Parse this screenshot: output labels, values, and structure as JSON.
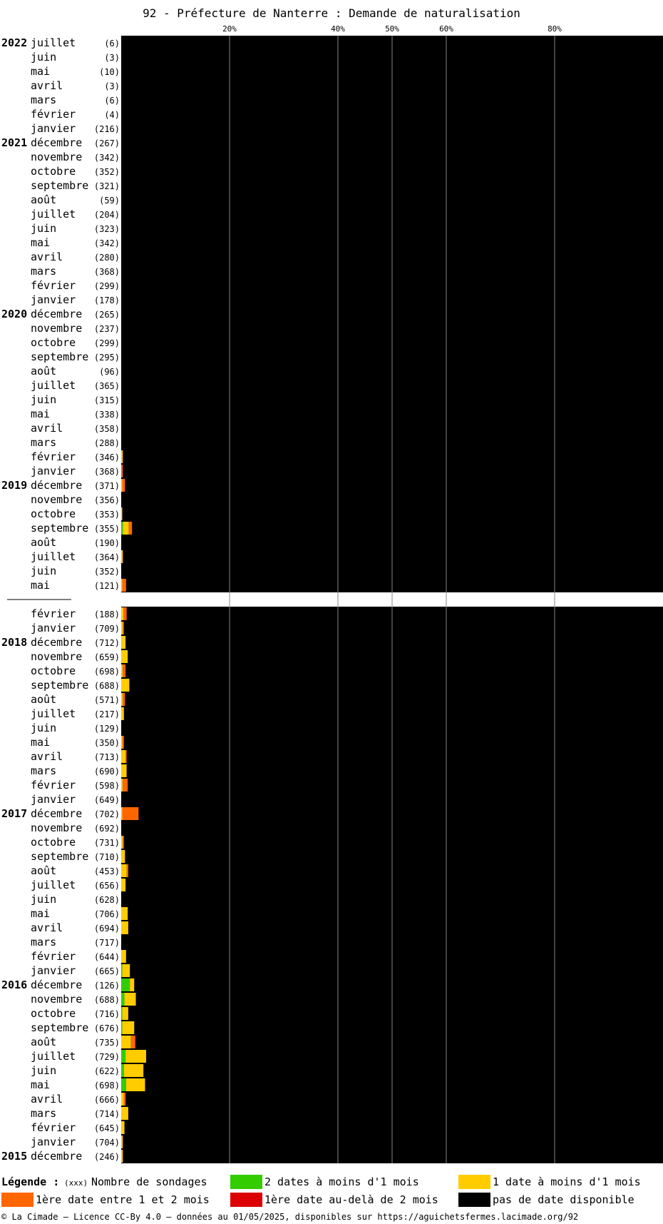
{
  "chart_data": {
    "type": "bar",
    "stacked": true,
    "orientation": "horizontal",
    "title": "92 - Préfecture de Nanterre : Demande de naturalisation",
    "x_ticks": [
      "20%",
      "40%",
      "50%",
      "60%",
      "80%"
    ],
    "x_tick_values": [
      20,
      40,
      50,
      60,
      80
    ],
    "xlim": [
      0,
      100
    ],
    "grid": true,
    "background_color": "#000000",
    "series": [
      {
        "key": "green",
        "name": "2 dates à moins d'1 mois",
        "color": "#33cc00"
      },
      {
        "key": "yellow",
        "name": "1 date à moins d'1 mois",
        "color": "#ffcc00"
      },
      {
        "key": "orange",
        "name": "1ère date entre 1 et 2 mois",
        "color": "#ff6600"
      },
      {
        "key": "red",
        "name": "1ère date au-delà de 2 mois",
        "color": "#dd0000"
      },
      {
        "key": "black",
        "name": "pas de date disponible",
        "color": "#000000"
      }
    ],
    "upper_rows": [
      {
        "year": "2022",
        "month": "juillet",
        "count": "(6)",
        "green": 0,
        "yellow": 0,
        "orange": 0
      },
      {
        "year": "",
        "month": "juin",
        "count": "(3)",
        "green": 0,
        "yellow": 0,
        "orange": 0
      },
      {
        "year": "",
        "month": "mai",
        "count": "(10)",
        "green": 0,
        "yellow": 0,
        "orange": 0
      },
      {
        "year": "",
        "month": "avril",
        "count": "(3)",
        "green": 0,
        "yellow": 0,
        "orange": 0
      },
      {
        "year": "",
        "month": "mars",
        "count": "(6)",
        "green": 0,
        "yellow": 0,
        "orange": 0
      },
      {
        "year": "",
        "month": "février",
        "count": "(4)",
        "green": 0,
        "yellow": 0,
        "orange": 0
      },
      {
        "year": "",
        "month": "janvier",
        "count": "(216)",
        "green": 0,
        "yellow": 0,
        "orange": 0
      },
      {
        "year": "2021",
        "month": "décembre",
        "count": "(267)",
        "green": 0,
        "yellow": 0,
        "orange": 0
      },
      {
        "year": "",
        "month": "novembre",
        "count": "(342)",
        "green": 0,
        "yellow": 0,
        "orange": 0
      },
      {
        "year": "",
        "month": "octobre",
        "count": "(352)",
        "green": 0,
        "yellow": 0,
        "orange": 0
      },
      {
        "year": "",
        "month": "septembre",
        "count": "(321)",
        "green": 0,
        "yellow": 0,
        "orange": 0
      },
      {
        "year": "",
        "month": "août",
        "count": "(59)",
        "green": 0,
        "yellow": 0,
        "orange": 0
      },
      {
        "year": "",
        "month": "juillet",
        "count": "(204)",
        "green": 0,
        "yellow": 0,
        "orange": 0
      },
      {
        "year": "",
        "month": "juin",
        "count": "(323)",
        "green": 0,
        "yellow": 0,
        "orange": 0
      },
      {
        "year": "",
        "month": "mai",
        "count": "(342)",
        "green": 0,
        "yellow": 0,
        "orange": 0
      },
      {
        "year": "",
        "month": "avril",
        "count": "(280)",
        "green": 0,
        "yellow": 0,
        "orange": 0
      },
      {
        "year": "",
        "month": "mars",
        "count": "(368)",
        "green": 0,
        "yellow": 0,
        "orange": 0
      },
      {
        "year": "",
        "month": "février",
        "count": "(299)",
        "green": 0,
        "yellow": 0,
        "orange": 0
      },
      {
        "year": "",
        "month": "janvier",
        "count": "(178)",
        "green": 0,
        "yellow": 0,
        "orange": 0
      },
      {
        "year": "2020",
        "month": "décembre",
        "count": "(265)",
        "green": 0,
        "yellow": 0,
        "orange": 0
      },
      {
        "year": "",
        "month": "novembre",
        "count": "(237)",
        "green": 0,
        "yellow": 0,
        "orange": 0
      },
      {
        "year": "",
        "month": "octobre",
        "count": "(299)",
        "green": 0,
        "yellow": 0,
        "orange": 0
      },
      {
        "year": "",
        "month": "septembre",
        "count": "(295)",
        "green": 0,
        "yellow": 0,
        "orange": 0
      },
      {
        "year": "",
        "month": "août",
        "count": "(96)",
        "green": 0,
        "yellow": 0,
        "orange": 0
      },
      {
        "year": "",
        "month": "juillet",
        "count": "(365)",
        "green": 0,
        "yellow": 0,
        "orange": 0
      },
      {
        "year": "",
        "month": "juin",
        "count": "(315)",
        "green": 0,
        "yellow": 0,
        "orange": 0
      },
      {
        "year": "",
        "month": "mai",
        "count": "(338)",
        "green": 0,
        "yellow": 0,
        "orange": 0
      },
      {
        "year": "",
        "month": "avril",
        "count": "(358)",
        "green": 0,
        "yellow": 0,
        "orange": 0
      },
      {
        "year": "",
        "month": "mars",
        "count": "(288)",
        "green": 0,
        "yellow": 0,
        "orange": 0
      },
      {
        "year": "",
        "month": "février",
        "count": "(346)",
        "green": 0,
        "yellow": 0.3,
        "orange": 0
      },
      {
        "year": "",
        "month": "janvier",
        "count": "(368)",
        "green": 0,
        "yellow": 0,
        "orange": 0.3
      },
      {
        "year": "2019",
        "month": "décembre",
        "count": "(371)",
        "green": 0,
        "yellow": 0.2,
        "orange": 0.5
      },
      {
        "year": "",
        "month": "novembre",
        "count": "(356)",
        "green": 0,
        "yellow": 0,
        "orange": 0
      },
      {
        "year": "",
        "month": "octobre",
        "count": "(353)",
        "green": 0,
        "yellow": 0.2,
        "orange": 0
      },
      {
        "year": "",
        "month": "septembre",
        "count": "(355)",
        "green": 0.3,
        "yellow": 1.1,
        "orange": 0.6
      },
      {
        "year": "",
        "month": "août",
        "count": "(190)",
        "green": 0,
        "yellow": 0,
        "orange": 0
      },
      {
        "year": "",
        "month": "juillet",
        "count": "(364)",
        "green": 0,
        "yellow": 0.3,
        "orange": 0
      },
      {
        "year": "",
        "month": "juin",
        "count": "(352)",
        "green": 0,
        "yellow": 0,
        "orange": 0
      },
      {
        "year": "",
        "month": "mai",
        "count": "(121)",
        "green": 0,
        "yellow": 0.2,
        "orange": 0.7
      }
    ],
    "lower_rows": [
      {
        "year": "",
        "month": "février",
        "count": "(188)",
        "green": 0,
        "yellow": 0.4,
        "orange": 0.6
      },
      {
        "year": "",
        "month": "janvier",
        "count": "(709)",
        "green": 0,
        "yellow": 0.3,
        "orange": 0.2
      },
      {
        "year": "2018",
        "month": "décembre",
        "count": "(712)",
        "green": 0,
        "yellow": 0.8,
        "orange": 0
      },
      {
        "year": "",
        "month": "novembre",
        "count": "(659)",
        "green": 0,
        "yellow": 1.2,
        "orange": 0
      },
      {
        "year": "",
        "month": "octobre",
        "count": "(698)",
        "green": 0,
        "yellow": 0.3,
        "orange": 0.5
      },
      {
        "year": "",
        "month": "septembre",
        "count": "(688)",
        "green": 0,
        "yellow": 1.5,
        "orange": 0
      },
      {
        "year": "",
        "month": "août",
        "count": "(571)",
        "green": 0,
        "yellow": 0.3,
        "orange": 0.4
      },
      {
        "year": "",
        "month": "juillet",
        "count": "(217)",
        "green": 0,
        "yellow": 0.5,
        "orange": 0
      },
      {
        "year": "",
        "month": "juin",
        "count": "(129)",
        "green": 0,
        "yellow": 0,
        "orange": 0
      },
      {
        "year": "",
        "month": "mai",
        "count": "(350)",
        "green": 0,
        "yellow": 0.2,
        "orange": 0.3
      },
      {
        "year": "",
        "month": "avril",
        "count": "(713)",
        "green": 0,
        "yellow": 0.8,
        "orange": 0.2
      },
      {
        "year": "",
        "month": "mars",
        "count": "(690)",
        "green": 0,
        "yellow": 1.0,
        "orange": 0
      },
      {
        "year": "",
        "month": "février",
        "count": "(598)",
        "green": 0,
        "yellow": 0.3,
        "orange": 0.9
      },
      {
        "year": "",
        "month": "janvier",
        "count": "(649)",
        "green": 0,
        "yellow": 0,
        "orange": 0
      },
      {
        "year": "2017",
        "month": "décembre",
        "count": "(702)",
        "green": 0,
        "yellow": 0.2,
        "orange": 3.0
      },
      {
        "year": "",
        "month": "novembre",
        "count": "(692)",
        "green": 0,
        "yellow": 0,
        "orange": 0
      },
      {
        "year": "",
        "month": "octobre",
        "count": "(731)",
        "green": 0,
        "yellow": 0.3,
        "orange": 0.2
      },
      {
        "year": "",
        "month": "septembre",
        "count": "(710)",
        "green": 0,
        "yellow": 0.7,
        "orange": 0
      },
      {
        "year": "",
        "month": "août",
        "count": "(453)",
        "green": 0,
        "yellow": 1.0,
        "orange": 0.3
      },
      {
        "year": "",
        "month": "juillet",
        "count": "(656)",
        "green": 0,
        "yellow": 0.8,
        "orange": 0
      },
      {
        "year": "",
        "month": "juin",
        "count": "(628)",
        "green": 0,
        "yellow": 0,
        "orange": 0
      },
      {
        "year": "",
        "month": "mai",
        "count": "(706)",
        "green": 0,
        "yellow": 1.2,
        "orange": 0
      },
      {
        "year": "",
        "month": "avril",
        "count": "(694)",
        "green": 0,
        "yellow": 1.3,
        "orange": 0
      },
      {
        "year": "",
        "month": "mars",
        "count": "(717)",
        "green": 0,
        "yellow": 0,
        "orange": 0
      },
      {
        "year": "",
        "month": "février",
        "count": "(644)",
        "green": 0,
        "yellow": 0.9,
        "orange": 0
      },
      {
        "year": "",
        "month": "janvier",
        "count": "(665)",
        "green": 0.2,
        "yellow": 1.4,
        "orange": 0
      },
      {
        "year": "2016",
        "month": "décembre",
        "count": "(126)",
        "green": 1.6,
        "yellow": 0.8,
        "orange": 0
      },
      {
        "year": "",
        "month": "novembre",
        "count": "(688)",
        "green": 0.6,
        "yellow": 2.1,
        "orange": 0
      },
      {
        "year": "",
        "month": "octobre",
        "count": "(716)",
        "green": 0.2,
        "yellow": 1.1,
        "orange": 0
      },
      {
        "year": "",
        "month": "septembre",
        "count": "(676)",
        "green": 0.2,
        "yellow": 2.2,
        "orange": 0
      },
      {
        "year": "",
        "month": "août",
        "count": "(735)",
        "green": 0,
        "yellow": 1.8,
        "orange": 0.8
      },
      {
        "year": "",
        "month": "juillet",
        "count": "(729)",
        "green": 0.8,
        "yellow": 3.8,
        "orange": 0
      },
      {
        "year": "",
        "month": "juin",
        "count": "(622)",
        "green": 0.5,
        "yellow": 3.6,
        "orange": 0
      },
      {
        "year": "",
        "month": "mai",
        "count": "(698)",
        "green": 0.9,
        "yellow": 3.5,
        "orange": 0
      },
      {
        "year": "",
        "month": "avril",
        "count": "(666)",
        "green": 0,
        "yellow": 0.5,
        "orange": 0.3
      },
      {
        "year": "",
        "month": "mars",
        "count": "(714)",
        "green": 0,
        "yellow": 1.3,
        "orange": 0
      },
      {
        "year": "",
        "month": "février",
        "count": "(645)",
        "green": 0,
        "yellow": 0.6,
        "orange": 0
      },
      {
        "year": "",
        "month": "janvier",
        "count": "(704)",
        "green": 0,
        "yellow": 0.3,
        "orange": 0
      },
      {
        "year": "2015",
        "month": "décembre",
        "count": "(246)",
        "green": 0,
        "yellow": 0.3,
        "orange": 0
      }
    ]
  },
  "legend": {
    "title": "Légende :",
    "count_sample": "(xxx)",
    "count_label": "Nombre de sondages"
  },
  "footer": "© La Cimade — Licence CC-By 4.0 — données au 01/05/2025, disponibles sur https://aguichetsfermes.lacimade.org/92"
}
